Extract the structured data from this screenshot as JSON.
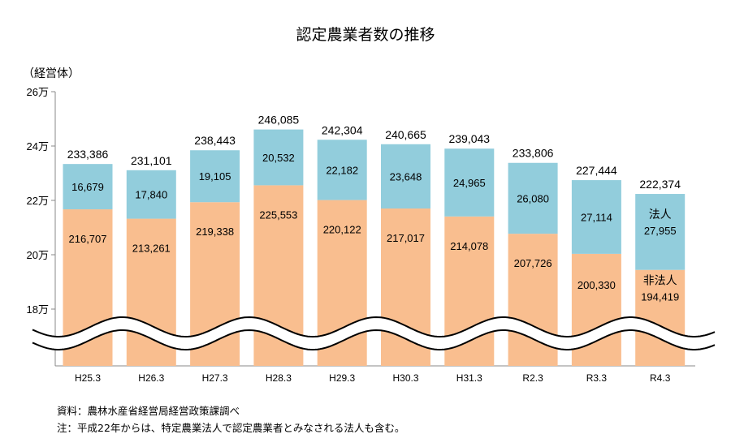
{
  "title": "認定農業者数の推移",
  "unit_label": "（経営体）",
  "notes": {
    "source": "資料：農林水産省経営局経営政策課調べ",
    "note": "注：平成22年からは、特定農業法人で認定農業者とみなされる法人も含む。"
  },
  "colors": {
    "non_corporate": "#F9BE8F",
    "corporate": "#92CDDC",
    "axis": "#888888",
    "break_line": "#000000"
  },
  "chart_data": {
    "type": "bar",
    "stacked": true,
    "title": "認定農業者数の推移",
    "ylabel": "（経営体）",
    "y_ticks": [
      "26万",
      "24万",
      "22万",
      "20万",
      "18万"
    ],
    "y_tick_values": [
      260000,
      240000,
      220000,
      200000,
      180000
    ],
    "ylim": [
      180000,
      260000
    ],
    "axis_break": true,
    "categories": [
      "H25.3",
      "H26.3",
      "H27.3",
      "H28.3",
      "H29.3",
      "H30.3",
      "H31.3",
      "R2.3",
      "R3.3",
      "R4.3"
    ],
    "series": [
      {
        "name": "非法人",
        "values": [
          216707,
          213261,
          219338,
          225553,
          220122,
          217017,
          214078,
          207726,
          200330,
          194419
        ],
        "labels": [
          "216,707",
          "213,261",
          "219,338",
          "225,553",
          "220,122",
          "217,017",
          "214,078",
          "207,726",
          "200,330",
          "194,419"
        ]
      },
      {
        "name": "法人",
        "values": [
          16679,
          17840,
          19105,
          20532,
          22182,
          23648,
          24965,
          26080,
          27114,
          27955
        ],
        "labels": [
          "16,679",
          "17,840",
          "19,105",
          "20,532",
          "22,182",
          "23,648",
          "24,965",
          "26,080",
          "27,114",
          "27,955"
        ]
      }
    ],
    "totals": [
      233386,
      231101,
      238443,
      246085,
      242304,
      240665,
      239043,
      233806,
      227444,
      222374
    ],
    "total_labels": [
      "233,386",
      "231,101",
      "238,443",
      "246,085",
      "242,304",
      "240,665",
      "239,043",
      "233,806",
      "227,444",
      "222,374"
    ],
    "inline_legend_bar": "R4.3"
  }
}
